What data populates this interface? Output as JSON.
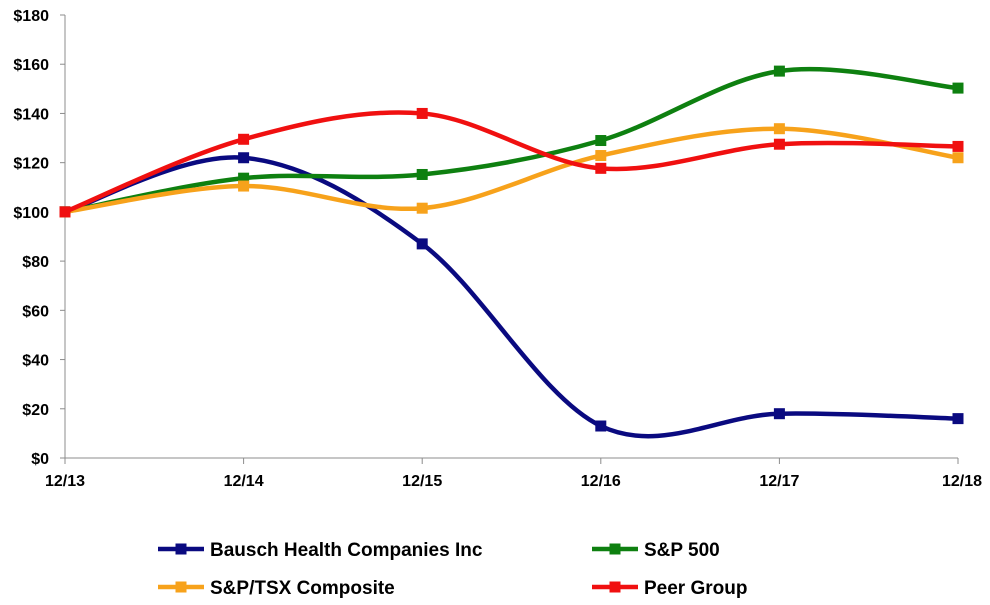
{
  "chart_data": {
    "type": "line",
    "title": "",
    "xlabel": "",
    "ylabel": "",
    "categories": [
      "12/13",
      "12/14",
      "12/15",
      "12/16",
      "12/17",
      "12/18"
    ],
    "ylim": [
      0,
      180
    ],
    "yticks": [
      0,
      20,
      40,
      60,
      80,
      100,
      120,
      140,
      160,
      180
    ],
    "ytick_labels": [
      "$0",
      "$20",
      "$40",
      "$60",
      "$80",
      "$100",
      "$120",
      "$140",
      "$160",
      "$180"
    ],
    "grid": false,
    "legend_position": "bottom",
    "series": [
      {
        "name": "Bausch Health Companies Inc",
        "color": "#0A0A80",
        "values": [
          100,
          122,
          87,
          13,
          18,
          16
        ]
      },
      {
        "name": "S&P 500",
        "color": "#0E8010",
        "values": [
          100,
          113.7,
          115.2,
          129,
          157.2,
          150.3
        ]
      },
      {
        "name": "S&P/TSX Composite",
        "color": "#F7A21B",
        "values": [
          100,
          110.5,
          101.5,
          122.9,
          133.8,
          122
        ]
      },
      {
        "name": "Peer Group",
        "color": "#F01010",
        "values": [
          100,
          129.5,
          140,
          117.7,
          127.5,
          126.6
        ]
      }
    ]
  }
}
